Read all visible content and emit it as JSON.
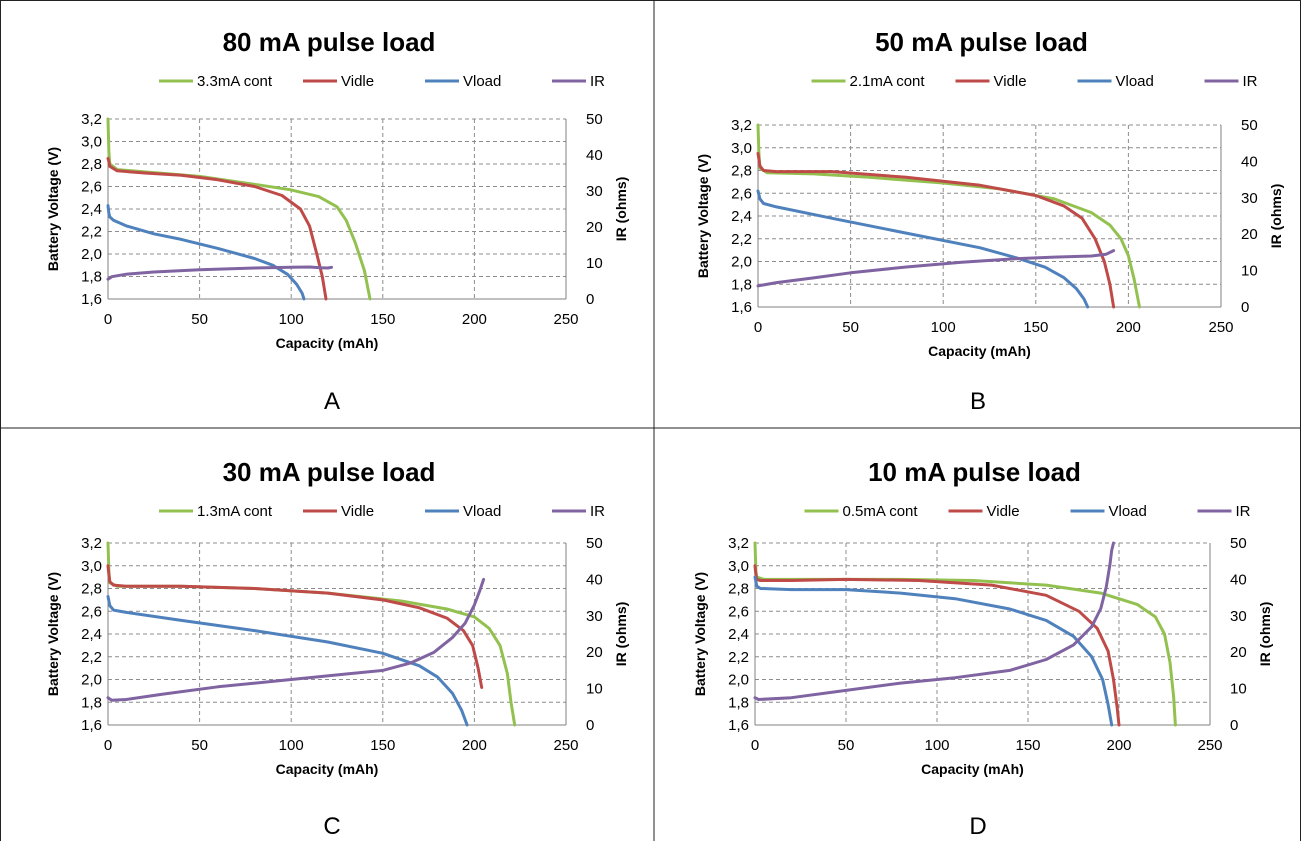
{
  "colors": {
    "cont": "#93C150",
    "vidle": "#BE4B48",
    "vload": "#4F81BD",
    "ir": "#8064A2",
    "grid": "#8c8c8c",
    "border": "#222222",
    "text": "#000000"
  },
  "chart_data": [
    {
      "type": "line",
      "panel_label": "A",
      "title": "80 mA pulse load",
      "xlabel": "Capacity (mAh)",
      "ylabel": "Battery Voltage (V)",
      "y2label": "IR (ohms)",
      "xlim": [
        0,
        250
      ],
      "ylim": [
        1.6,
        3.2
      ],
      "y2lim": [
        0,
        50
      ],
      "xticks": [
        "0",
        "50",
        "100",
        "150",
        "200",
        "250"
      ],
      "yticks": [
        "1,6",
        "1,8",
        "2,0",
        "2,2",
        "2,4",
        "2,6",
        "2,8",
        "3,0",
        "3,2"
      ],
      "y2ticks": [
        "0",
        "10",
        "20",
        "30",
        "40",
        "50"
      ],
      "grid": true,
      "legend_position": "top",
      "series": [
        {
          "name": "3.3mA cont",
          "color_key": "cont",
          "axis": "left",
          "x": [
            0,
            0.5,
            1,
            5,
            20,
            50,
            80,
            100,
            115,
            125,
            130,
            135,
            140,
            143
          ],
          "y": [
            3.2,
            2.9,
            2.8,
            2.75,
            2.73,
            2.69,
            2.62,
            2.57,
            2.51,
            2.42,
            2.3,
            2.1,
            1.85,
            1.6
          ]
        },
        {
          "name": "Vidle",
          "color_key": "vidle",
          "axis": "left",
          "x": [
            0,
            0.5,
            1,
            5,
            20,
            40,
            60,
            80,
            95,
            105,
            110,
            114,
            117,
            119
          ],
          "y": [
            2.85,
            2.82,
            2.78,
            2.74,
            2.72,
            2.7,
            2.66,
            2.6,
            2.52,
            2.4,
            2.25,
            2.0,
            1.8,
            1.6
          ]
        },
        {
          "name": "Vload",
          "color_key": "vload",
          "axis": "left",
          "x": [
            0,
            0.5,
            1,
            3,
            10,
            25,
            40,
            60,
            80,
            90,
            98,
            103,
            106,
            107
          ],
          "y": [
            2.43,
            2.36,
            2.33,
            2.3,
            2.25,
            2.18,
            2.13,
            2.05,
            1.96,
            1.9,
            1.82,
            1.73,
            1.65,
            1.6
          ]
        },
        {
          "name": "IR",
          "color_key": "ir",
          "axis": "right",
          "x": [
            0,
            2,
            10,
            25,
            50,
            80,
            100,
            110,
            116,
            120,
            122
          ],
          "y": [
            5.5,
            6.2,
            6.9,
            7.5,
            8.1,
            8.6,
            8.8,
            8.9,
            8.7,
            8.6,
            8.8
          ]
        }
      ]
    },
    {
      "type": "line",
      "panel_label": "B",
      "title": "50 mA pulse load",
      "xlabel": "Capacity (mAh)",
      "ylabel": "Battery Voltage (V)",
      "y2label": "IR (ohms)",
      "xlim": [
        0,
        250
      ],
      "ylim": [
        1.6,
        3.2
      ],
      "y2lim": [
        0,
        50
      ],
      "xticks": [
        "0",
        "50",
        "100",
        "150",
        "200",
        "250"
      ],
      "yticks": [
        "1,6",
        "1,8",
        "2,0",
        "2,2",
        "2,4",
        "2,6",
        "2,8",
        "3,0",
        "3,2"
      ],
      "y2ticks": [
        "0",
        "10",
        "20",
        "30",
        "40",
        "50"
      ],
      "grid": true,
      "legend_position": "top",
      "series": [
        {
          "name": "2.1mA cont",
          "color_key": "cont",
          "axis": "left",
          "x": [
            0,
            0.5,
            1,
            5,
            30,
            60,
            100,
            130,
            160,
            180,
            190,
            196,
            200,
            203,
            206
          ],
          "y": [
            3.2,
            2.95,
            2.82,
            2.78,
            2.77,
            2.74,
            2.69,
            2.64,
            2.55,
            2.43,
            2.32,
            2.2,
            2.05,
            1.85,
            1.6
          ]
        },
        {
          "name": "Vidle",
          "color_key": "vidle",
          "axis": "left",
          "x": [
            0,
            0.5,
            1,
            3,
            10,
            40,
            80,
            120,
            150,
            165,
            175,
            182,
            187,
            190,
            192
          ],
          "y": [
            2.95,
            2.9,
            2.84,
            2.8,
            2.79,
            2.79,
            2.74,
            2.67,
            2.58,
            2.49,
            2.38,
            2.2,
            2.0,
            1.8,
            1.6
          ]
        },
        {
          "name": "Vload",
          "color_key": "vload",
          "axis": "left",
          "x": [
            0,
            1,
            3,
            10,
            40,
            80,
            120,
            140,
            155,
            165,
            172,
            176,
            178
          ],
          "y": [
            2.62,
            2.55,
            2.51,
            2.48,
            2.38,
            2.25,
            2.12,
            2.03,
            1.95,
            1.86,
            1.76,
            1.67,
            1.6
          ]
        },
        {
          "name": "IR",
          "color_key": "ir",
          "axis": "right",
          "x": [
            0,
            10,
            30,
            50,
            80,
            110,
            140,
            160,
            180,
            188,
            192
          ],
          "y": [
            5.8,
            6.7,
            8.0,
            9.4,
            11.0,
            12.3,
            13.3,
            13.7,
            14.0,
            14.5,
            15.5
          ]
        }
      ]
    },
    {
      "type": "line",
      "panel_label": "C",
      "title": "30 mA pulse load",
      "xlabel": "Capacity (mAh)",
      "ylabel": "Battery Voltage (V)",
      "y2label": "IR (ohms)",
      "xlim": [
        0,
        250
      ],
      "ylim": [
        1.6,
        3.2
      ],
      "y2lim": [
        0,
        50
      ],
      "xticks": [
        "0",
        "50",
        "100",
        "150",
        "200",
        "250"
      ],
      "yticks": [
        "1,6",
        "1,8",
        "2,0",
        "2,2",
        "2,4",
        "2,6",
        "2,8",
        "3,0",
        "3,2"
      ],
      "y2ticks": [
        "0",
        "10",
        "20",
        "30",
        "40",
        "50"
      ],
      "grid": true,
      "legend_position": "top",
      "series": [
        {
          "name": "1.3mA cont",
          "color_key": "cont",
          "axis": "left",
          "x": [
            0,
            0.5,
            1,
            5,
            40,
            80,
            120,
            160,
            185,
            200,
            208,
            214,
            218,
            220,
            222
          ],
          "y": [
            3.2,
            2.95,
            2.85,
            2.82,
            2.82,
            2.8,
            2.76,
            2.69,
            2.62,
            2.55,
            2.45,
            2.3,
            2.05,
            1.8,
            1.6
          ]
        },
        {
          "name": "Vidle",
          "color_key": "vidle",
          "axis": "left",
          "x": [
            0,
            0.5,
            1,
            3,
            10,
            40,
            80,
            120,
            150,
            170,
            185,
            194,
            199,
            202,
            204
          ],
          "y": [
            3.0,
            2.92,
            2.86,
            2.83,
            2.82,
            2.82,
            2.8,
            2.76,
            2.7,
            2.63,
            2.54,
            2.43,
            2.3,
            2.1,
            1.93
          ]
        },
        {
          "name": "Vload",
          "color_key": "vload",
          "axis": "left",
          "x": [
            0,
            1,
            3,
            10,
            40,
            80,
            120,
            150,
            170,
            180,
            188,
            193,
            196
          ],
          "y": [
            2.73,
            2.65,
            2.61,
            2.59,
            2.52,
            2.43,
            2.33,
            2.23,
            2.12,
            2.02,
            1.88,
            1.73,
            1.6
          ]
        },
        {
          "name": "IR",
          "color_key": "ir",
          "axis": "right",
          "x": [
            0,
            2,
            10,
            30,
            60,
            100,
            130,
            150,
            165,
            178,
            188,
            195,
            200,
            203,
            205
          ],
          "y": [
            7.5,
            6.8,
            7.0,
            8.5,
            10.5,
            12.5,
            14.0,
            15.0,
            17.0,
            20.0,
            24.0,
            28.0,
            33.0,
            37.0,
            40.0
          ]
        }
      ]
    },
    {
      "type": "line",
      "panel_label": "D",
      "title": "10 mA pulse load",
      "xlabel": "Capacity (mAh)",
      "ylabel": "Battery Voltage (V)",
      "y2label": "IR (ohms)",
      "xlim": [
        0,
        250
      ],
      "ylim": [
        1.6,
        3.2
      ],
      "y2lim": [
        0,
        50
      ],
      "xticks": [
        "0",
        "50",
        "100",
        "150",
        "200",
        "250"
      ],
      "yticks": [
        "1,6",
        "1,8",
        "2,0",
        "2,2",
        "2,4",
        "2,6",
        "2,8",
        "3,0",
        "3,2"
      ],
      "y2ticks": [
        "0",
        "10",
        "20",
        "30",
        "40",
        "50"
      ],
      "grid": true,
      "legend_position": "top",
      "series": [
        {
          "name": "0.5mA cont",
          "color_key": "cont",
          "axis": "left",
          "x": [
            0,
            0.5,
            1,
            5,
            40,
            80,
            120,
            160,
            190,
            210,
            220,
            225,
            228,
            230,
            231
          ],
          "y": [
            3.2,
            2.95,
            2.9,
            2.88,
            2.88,
            2.88,
            2.87,
            2.83,
            2.76,
            2.66,
            2.55,
            2.4,
            2.15,
            1.85,
            1.6
          ]
        },
        {
          "name": "Vidle",
          "color_key": "vidle",
          "axis": "left",
          "x": [
            0,
            0.5,
            1,
            3,
            20,
            50,
            90,
            130,
            160,
            178,
            188,
            194,
            197,
            199,
            200
          ],
          "y": [
            3.0,
            2.92,
            2.88,
            2.87,
            2.87,
            2.88,
            2.87,
            2.83,
            2.74,
            2.6,
            2.45,
            2.25,
            2.0,
            1.75,
            1.6
          ]
        },
        {
          "name": "Vload",
          "color_key": "vload",
          "axis": "left",
          "x": [
            0,
            1,
            3,
            20,
            50,
            80,
            110,
            140,
            160,
            175,
            185,
            191,
            194,
            196
          ],
          "y": [
            2.9,
            2.82,
            2.8,
            2.79,
            2.79,
            2.76,
            2.71,
            2.62,
            2.52,
            2.38,
            2.2,
            2.0,
            1.78,
            1.6
          ]
        },
        {
          "name": "IR",
          "color_key": "ir",
          "axis": "right",
          "x": [
            0,
            2,
            20,
            50,
            80,
            110,
            140,
            160,
            175,
            185,
            190,
            193,
            195,
            196,
            197
          ],
          "y": [
            7.5,
            7.0,
            7.5,
            9.5,
            11.5,
            13.0,
            15.0,
            18.0,
            22.0,
            27.0,
            32.0,
            38.0,
            44.0,
            48.0,
            50.0
          ]
        }
      ]
    }
  ]
}
